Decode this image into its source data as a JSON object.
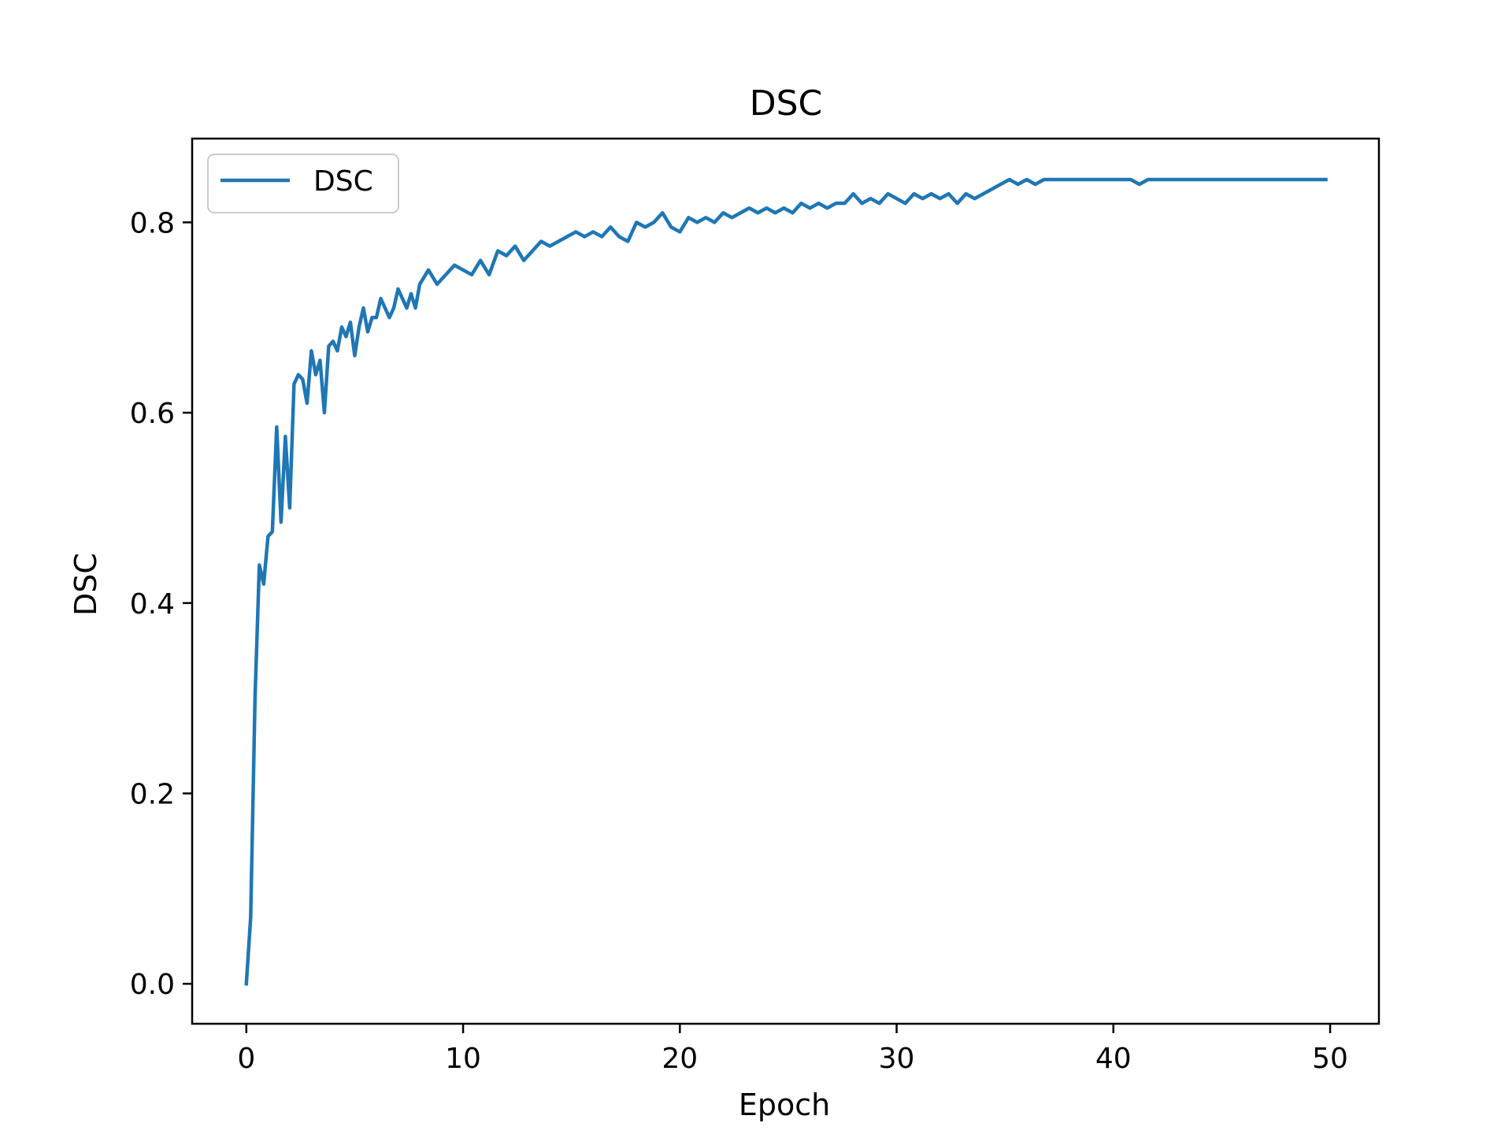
{
  "chart_data": {
    "type": "line",
    "title": "DSC",
    "xlabel": "Epoch",
    "ylabel": "DSC",
    "xlim": [
      -2.5,
      52.25
    ],
    "ylim": [
      -0.042,
      0.888
    ],
    "xticks": [
      0,
      10,
      20,
      30,
      40,
      50
    ],
    "yticks": [
      0.0,
      0.2,
      0.4,
      0.6,
      0.8
    ],
    "xtick_labels": [
      "0",
      "10",
      "20",
      "30",
      "40",
      "50"
    ],
    "ytick_labels": [
      "0.0",
      "0.2",
      "0.4",
      "0.6",
      "0.8"
    ],
    "grid": false,
    "legend": {
      "placement": "upper-left",
      "entries": [
        "DSC"
      ]
    },
    "series": [
      {
        "name": "DSC",
        "color": "#1f77b4",
        "x": [
          0.0,
          0.2,
          0.4,
          0.6,
          0.8,
          1.0,
          1.2,
          1.4,
          1.6,
          1.8,
          2.0,
          2.2,
          2.4,
          2.6,
          2.8,
          3.0,
          3.2,
          3.4,
          3.6,
          3.8,
          4.0,
          4.2,
          4.4,
          4.6,
          4.8,
          5.0,
          5.2,
          5.4,
          5.6,
          5.8,
          6.0,
          6.2,
          6.4,
          6.6,
          6.8,
          7.0,
          7.2,
          7.4,
          7.6,
          7.8,
          8.0,
          8.4,
          8.8,
          9.2,
          9.6,
          10.0,
          10.4,
          10.8,
          11.2,
          11.6,
          12.0,
          12.4,
          12.8,
          13.2,
          13.6,
          14.0,
          14.4,
          14.8,
          15.2,
          15.6,
          16.0,
          16.4,
          16.8,
          17.2,
          17.6,
          18.0,
          18.4,
          18.8,
          19.2,
          19.6,
          20.0,
          20.4,
          20.8,
          21.2,
          21.6,
          22.0,
          22.4,
          22.8,
          23.2,
          23.6,
          24.0,
          24.4,
          24.8,
          25.2,
          25.6,
          26.0,
          26.4,
          26.8,
          27.2,
          27.6,
          28.0,
          28.4,
          28.8,
          29.2,
          29.6,
          30.0,
          30.4,
          30.8,
          31.2,
          31.6,
          32.0,
          32.4,
          32.8,
          33.2,
          33.6,
          34.0,
          34.4,
          34.8,
          35.2,
          35.6,
          36.0,
          36.4,
          36.8,
          37.2,
          37.6,
          38.0,
          38.4,
          38.8,
          39.2,
          39.6,
          40.0,
          40.4,
          40.8,
          41.2,
          41.6,
          42.0,
          42.4,
          42.8,
          43.2,
          43.6,
          44.0,
          44.4,
          44.8,
          45.2,
          45.6,
          46.0,
          46.4,
          46.8,
          47.2,
          47.6,
          48.0,
          48.4,
          48.8,
          49.2,
          49.6,
          49.8
        ],
        "y": [
          0.0,
          0.07,
          0.3,
          0.44,
          0.42,
          0.47,
          0.475,
          0.585,
          0.485,
          0.575,
          0.5,
          0.63,
          0.64,
          0.635,
          0.61,
          0.665,
          0.64,
          0.655,
          0.6,
          0.67,
          0.675,
          0.665,
          0.69,
          0.68,
          0.695,
          0.66,
          0.69,
          0.71,
          0.685,
          0.7,
          0.7,
          0.72,
          0.71,
          0.7,
          0.71,
          0.73,
          0.72,
          0.71,
          0.725,
          0.71,
          0.735,
          0.75,
          0.735,
          0.745,
          0.755,
          0.75,
          0.745,
          0.76,
          0.745,
          0.77,
          0.765,
          0.775,
          0.76,
          0.77,
          0.78,
          0.775,
          0.78,
          0.785,
          0.79,
          0.785,
          0.79,
          0.785,
          0.795,
          0.785,
          0.78,
          0.8,
          0.795,
          0.8,
          0.81,
          0.795,
          0.79,
          0.805,
          0.8,
          0.805,
          0.8,
          0.81,
          0.805,
          0.81,
          0.815,
          0.81,
          0.815,
          0.81,
          0.815,
          0.81,
          0.82,
          0.815,
          0.82,
          0.815,
          0.82,
          0.82,
          0.83,
          0.82,
          0.825,
          0.82,
          0.83,
          0.825,
          0.82,
          0.83,
          0.825,
          0.83,
          0.825,
          0.83,
          0.82,
          0.83,
          0.825,
          0.83,
          0.835,
          0.84,
          0.845,
          0.84,
          0.845,
          0.84,
          0.845,
          0.845,
          0.845,
          0.845,
          0.845,
          0.845,
          0.845,
          0.845,
          0.845,
          0.845,
          0.845,
          0.84,
          0.845,
          0.845,
          0.845,
          0.845,
          0.845,
          0.845,
          0.845,
          0.845,
          0.845,
          0.845,
          0.845,
          0.845,
          0.845,
          0.845,
          0.845,
          0.845,
          0.845,
          0.845,
          0.845,
          0.845,
          0.845,
          0.845
        ]
      }
    ]
  }
}
